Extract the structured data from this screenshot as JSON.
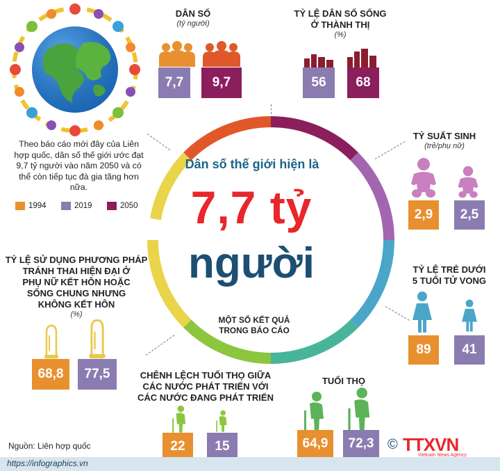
{
  "intro_text": "Theo báo cáo mới đây của Liên hợp quốc, dân số thế giới ước đạt 9,7  tỷ người vào năm 2050  và có thể còn tiếp tục đà gia tăng hơn nữa.",
  "legend": [
    {
      "label": "1994",
      "color": "#e8902f"
    },
    {
      "label": "2019",
      "color": "#8a7cb0"
    },
    {
      "label": "2050",
      "color": "#8b1e5c"
    }
  ],
  "center": {
    "line1": "Dân số thế giới hiện là",
    "line2": "7,7 tỷ",
    "line3": "người",
    "caption": "MỘT SỐ KẾT QUẢ TRONG BÁO CÁO"
  },
  "population": {
    "title": "DÂN SỐ",
    "unit": "(tỷ người)",
    "v2019": "7,7",
    "v2050": "9,7"
  },
  "urban": {
    "title_line1": "TỶ LỆ DÂN SỐ SỐNG",
    "title_line2": "Ở THÀNH THỊ",
    "unit": "(%)",
    "v2019": "56",
    "v2050": "68"
  },
  "fertility": {
    "title": "TỶ SUẤT SINH",
    "unit": "(trẻ/phụ nữ)",
    "v1994": "2,9",
    "v2019": "2,5"
  },
  "child_mortality": {
    "title_line1": "TỶ LỆ TRẺ DƯỚI",
    "title_line2": "5 TUỔI TỬ VONG",
    "v1994": "89",
    "v2019": "41"
  },
  "life_expectancy": {
    "title": "TUỔI THỌ",
    "v1994": "64,9",
    "v2019": "72,3"
  },
  "life_gap": {
    "title_line1": "CHÊNH LỆCH TUỔI THỌ GIỮA",
    "title_line2": "CÁC NƯỚC PHÁT TRIỂN VỚI",
    "title_line3": "CÁC NƯỚC ĐANG PHÁT TRIỂN",
    "v1994": "22",
    "v2019": "15"
  },
  "contraception": {
    "title_line1": "TỶ LỆ SỬ DỤNG PHƯƠNG PHÁP",
    "title_line2": "TRÁNH THAI HIỆN ĐẠI Ở",
    "title_line3": "PHỤ NỮ KẾT HÔN HOẶC",
    "title_line4": "SỐNG CHUNG NHƯNG",
    "title_line5": "KHÔNG KẾT HÔN",
    "unit": "(%)",
    "v1994": "68,8",
    "v2019": "77,5"
  },
  "source": "Nguồn: Liên hợp quốc",
  "url": "https://infographics.vn",
  "logo": {
    "copyright": "©",
    "brand": "TTXVN",
    "tagline": "Vietnam News Agency"
  },
  "ring_colors": [
    "#8b1e5c",
    "#a465b0",
    "#4aa6c9",
    "#48b59a",
    "#8cc63e",
    "#e9d44a",
    "#e8902f",
    "#e0582a"
  ]
}
